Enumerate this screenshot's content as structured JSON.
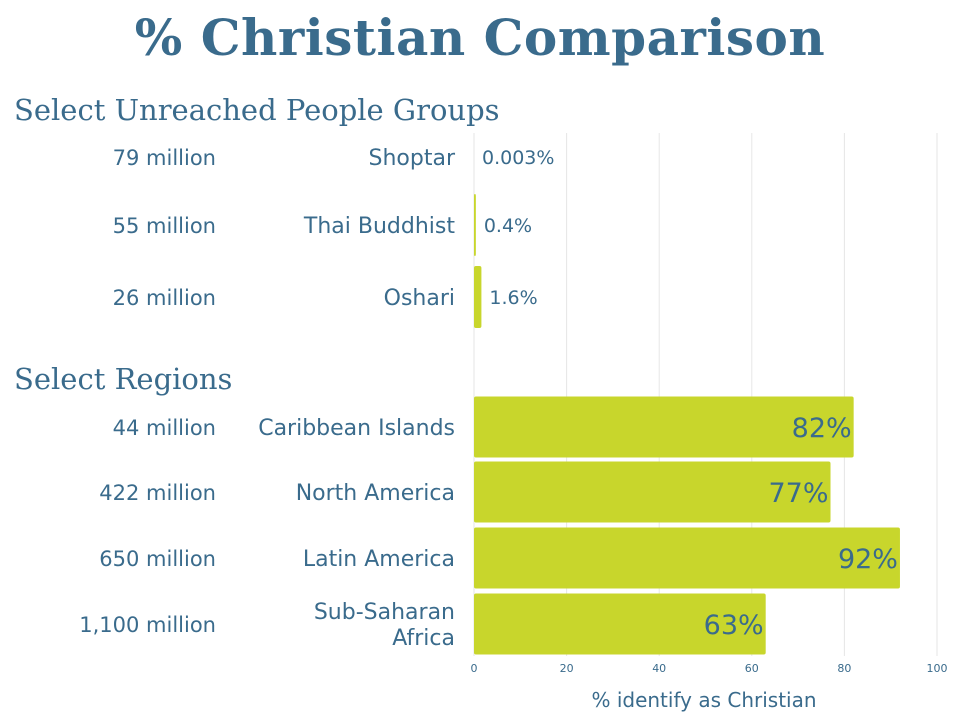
{
  "chart_data": {
    "type": "bar",
    "orientation": "horizontal",
    "title": "% Christian Comparison",
    "xlabel": "% identify as Christian",
    "xlim": [
      0,
      100
    ],
    "xticks": [
      "0",
      "20",
      "40",
      "60",
      "80",
      "100"
    ],
    "groups": [
      {
        "name": "Select Unreached People Groups",
        "categories": [
          {
            "label": "Shoptar",
            "population": "79 million",
            "value": 0.003,
            "value_label": "0.003%"
          },
          {
            "label": "Thai Buddhist",
            "population": "55 million",
            "value": 0.4,
            "value_label": "0.4%"
          },
          {
            "label": "Oshari",
            "population": "26 million",
            "value": 1.6,
            "value_label": "1.6%"
          }
        ]
      },
      {
        "name": "Select Regions",
        "categories": [
          {
            "label": "Caribbean Islands",
            "population": "44 million",
            "value": 82,
            "value_label": "82%"
          },
          {
            "label": "North America",
            "population": "422 million",
            "value": 77,
            "value_label": "77%"
          },
          {
            "label": "Latin America",
            "population": "650 million",
            "value": 92,
            "value_label": "92%"
          },
          {
            "label": "Sub-Saharan Africa",
            "population": "1,100 million",
            "value": 63,
            "value_label": "63%"
          }
        ]
      }
    ],
    "colors": {
      "bar": "#c8d62c",
      "text": "#3a6b8c",
      "grid": "#e6e6e6"
    }
  }
}
